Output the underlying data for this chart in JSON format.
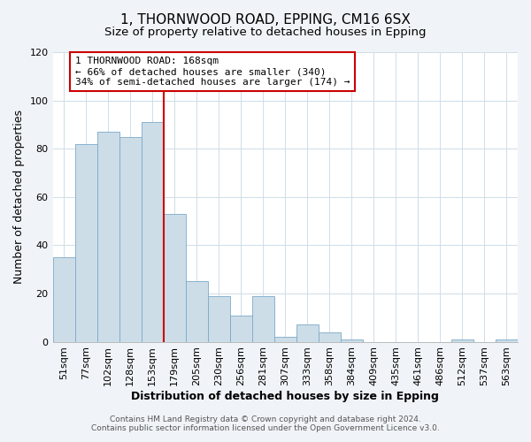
{
  "title": "1, THORNWOOD ROAD, EPPING, CM16 6SX",
  "subtitle": "Size of property relative to detached houses in Epping",
  "xlabel": "Distribution of detached houses by size in Epping",
  "ylabel": "Number of detached properties",
  "bar_labels": [
    "51sqm",
    "77sqm",
    "102sqm",
    "128sqm",
    "153sqm",
    "179sqm",
    "205sqm",
    "230sqm",
    "256sqm",
    "281sqm",
    "307sqm",
    "333sqm",
    "358sqm",
    "384sqm",
    "409sqm",
    "435sqm",
    "461sqm",
    "486sqm",
    "512sqm",
    "537sqm",
    "563sqm"
  ],
  "bar_values": [
    35,
    82,
    87,
    85,
    91,
    53,
    25,
    19,
    11,
    19,
    2,
    7,
    4,
    1,
    0,
    0,
    0,
    0,
    1,
    0,
    1
  ],
  "bar_color": "#ccdde8",
  "bar_edge_color": "#7baac8",
  "ylim": [
    0,
    120
  ],
  "yticks": [
    0,
    20,
    40,
    60,
    80,
    100,
    120
  ],
  "vline_index": 5,
  "vline_color": "#cc0000",
  "annotation_line1": "1 THORNWOOD ROAD: 168sqm",
  "annotation_line2": "← 66% of detached houses are smaller (340)",
  "annotation_line3": "34% of semi-detached houses are larger (174) →",
  "annotation_box_color": "#ffffff",
  "annotation_border_color": "#cc0000",
  "footer_line1": "Contains HM Land Registry data © Crown copyright and database right 2024.",
  "footer_line2": "Contains public sector information licensed under the Open Government Licence v3.0.",
  "background_color": "#f0f4f8",
  "plot_background_color": "#ffffff",
  "grid_color": "#d0dde8",
  "title_fontsize": 11,
  "subtitle_fontsize": 9.5,
  "xlabel_fontsize": 9,
  "ylabel_fontsize": 9,
  "tick_fontsize": 8,
  "annotation_fontsize": 8,
  "footer_fontsize": 6.5
}
